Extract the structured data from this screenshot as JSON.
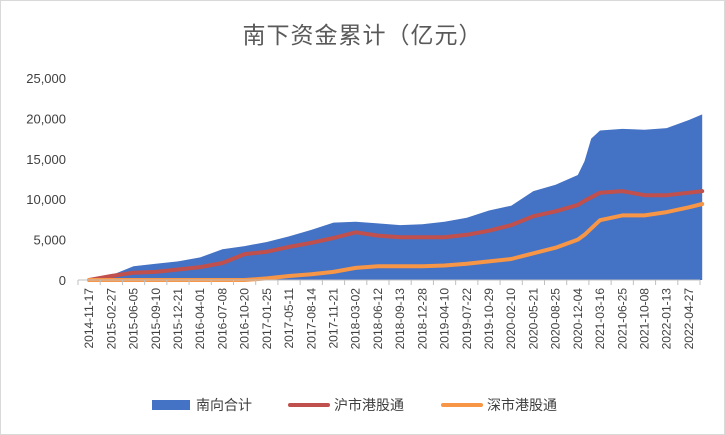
{
  "chart_data": {
    "type": "area",
    "title": "南下资金累计（亿元）",
    "xlabel": "",
    "ylabel": "",
    "ylim": [
      0,
      25000
    ],
    "yticks": [
      0,
      5000,
      10000,
      15000,
      20000,
      25000
    ],
    "ytick_labels": [
      "0",
      "5,000",
      "10,000",
      "15,000",
      "20,000",
      "25,000"
    ],
    "x_tick_labels": [
      "2014-11-17",
      "2015-02-27",
      "2015-06-05",
      "2015-09-10",
      "2015-12-21",
      "2016-04-01",
      "2016-07-08",
      "2016-10-20",
      "2017-01-25",
      "2017-05-11",
      "2017-08-14",
      "2017-11-21",
      "2018-03-02",
      "2018-06-12",
      "2018-09-13",
      "2018-12-28",
      "2019-04-10",
      "2019-07-22",
      "2019-10-29",
      "2020-02-10",
      "2020-05-21",
      "2020-08-25",
      "2020-12-04",
      "2021-03-16",
      "2021-06-25",
      "2021-10-08",
      "2022-01-13",
      "2022-04-27"
    ],
    "grid": false,
    "legend_position": "bottom",
    "series": [
      {
        "name": "南向合计",
        "type": "area",
        "color": "#4472c4",
        "x": [
          0,
          1,
          2,
          3,
          4,
          5,
          6,
          7,
          8,
          9,
          10,
          11,
          12,
          13,
          14,
          15,
          16,
          17,
          18,
          19,
          20,
          21,
          22,
          22.3,
          22.6,
          23,
          24,
          25,
          26,
          27,
          27.6
        ],
        "values": [
          0,
          600,
          1700,
          2000,
          2300,
          2800,
          3800,
          4200,
          4700,
          5400,
          6200,
          7100,
          7200,
          7000,
          6800,
          6900,
          7200,
          7700,
          8600,
          9200,
          11000,
          11800,
          13000,
          14700,
          17500,
          18500,
          18700,
          18600,
          18800,
          19800,
          20500
        ]
      },
      {
        "name": "沪市港股通",
        "type": "line",
        "color": "#c0504d",
        "x": [
          0,
          1,
          2,
          3,
          4,
          5,
          6,
          7,
          8,
          9,
          10,
          11,
          12,
          13,
          14,
          15,
          16,
          17,
          18,
          19,
          20,
          21,
          22,
          22.3,
          23,
          24,
          25,
          26,
          27,
          27.6
        ],
        "values": [
          0,
          500,
          900,
          1000,
          1300,
          1600,
          2100,
          3200,
          3500,
          4100,
          4600,
          5200,
          5900,
          5500,
          5300,
          5300,
          5300,
          5600,
          6100,
          6800,
          7900,
          8500,
          9300,
          9800,
          10800,
          11000,
          10500,
          10500,
          10800,
          11000
        ]
      },
      {
        "name": "深市港股通",
        "type": "line",
        "color": "#f79646",
        "x": [
          0,
          1,
          2,
          3,
          4,
          5,
          6,
          7,
          8,
          9,
          10,
          11,
          12,
          13,
          14,
          15,
          16,
          17,
          18,
          19,
          20,
          21,
          22,
          22.3,
          23,
          24,
          25,
          26,
          27,
          27.6
        ],
        "values": [
          0,
          0,
          0,
          0,
          0,
          0,
          0,
          0,
          200,
          500,
          700,
          1000,
          1500,
          1700,
          1700,
          1700,
          1800,
          2000,
          2300,
          2600,
          3300,
          4000,
          5000,
          5600,
          7400,
          8000,
          8000,
          8400,
          9000,
          9400
        ]
      }
    ]
  }
}
